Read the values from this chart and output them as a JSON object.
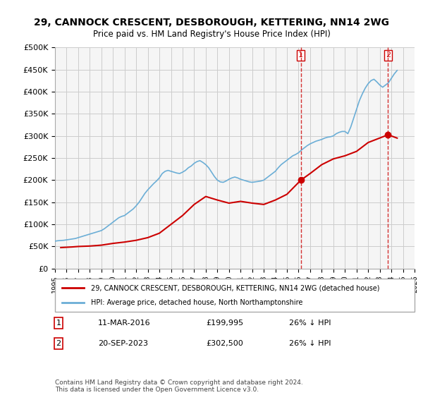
{
  "title": "29, CANNOCK CRESCENT, DESBOROUGH, KETTERING, NN14 2WG",
  "subtitle": "Price paid vs. HM Land Registry's House Price Index (HPI)",
  "ylabel_ticks": [
    0,
    50000,
    100000,
    150000,
    200000,
    250000,
    300000,
    350000,
    400000,
    450000,
    500000
  ],
  "ylabel_labels": [
    "£0",
    "£50K",
    "£100K",
    "£150K",
    "£200K",
    "£250K",
    "£300K",
    "£350K",
    "£400K",
    "£450K",
    "£500K"
  ],
  "xmin": 1995,
  "xmax": 2026,
  "ymin": 0,
  "ymax": 500000,
  "hpi_color": "#6baed6",
  "price_color": "#cc0000",
  "vline_color": "#cc0000",
  "grid_color": "#cccccc",
  "bg_color": "#f5f5f5",
  "legend_label_red": "29, CANNOCK CRESCENT, DESBOROUGH, KETTERING, NN14 2WG (detached house)",
  "legend_label_blue": "HPI: Average price, detached house, North Northamptonshire",
  "sale1_date": "11-MAR-2016",
  "sale1_price": "£199,995",
  "sale1_hpi": "26% ↓ HPI",
  "sale1_year": 2016.2,
  "sale2_date": "20-SEP-2023",
  "sale2_price": "£302,500",
  "sale2_hpi": "26% ↓ HPI",
  "sale2_year": 2023.72,
  "footer": "Contains HM Land Registry data © Crown copyright and database right 2024.\nThis data is licensed under the Open Government Licence v3.0.",
  "hpi_x": [
    1995.0,
    1995.25,
    1995.5,
    1995.75,
    1996.0,
    1996.25,
    1996.5,
    1996.75,
    1997.0,
    1997.25,
    1997.5,
    1997.75,
    1998.0,
    1998.25,
    1998.5,
    1998.75,
    1999.0,
    1999.25,
    1999.5,
    1999.75,
    2000.0,
    2000.25,
    2000.5,
    2000.75,
    2001.0,
    2001.25,
    2001.5,
    2001.75,
    2002.0,
    2002.25,
    2002.5,
    2002.75,
    2003.0,
    2003.25,
    2003.5,
    2003.75,
    2004.0,
    2004.25,
    2004.5,
    2004.75,
    2005.0,
    2005.25,
    2005.5,
    2005.75,
    2006.0,
    2006.25,
    2006.5,
    2006.75,
    2007.0,
    2007.25,
    2007.5,
    2007.75,
    2008.0,
    2008.25,
    2008.5,
    2008.75,
    2009.0,
    2009.25,
    2009.5,
    2009.75,
    2010.0,
    2010.25,
    2010.5,
    2010.75,
    2011.0,
    2011.25,
    2011.5,
    2011.75,
    2012.0,
    2012.25,
    2012.5,
    2012.75,
    2013.0,
    2013.25,
    2013.5,
    2013.75,
    2014.0,
    2014.25,
    2014.5,
    2014.75,
    2015.0,
    2015.25,
    2015.5,
    2015.75,
    2016.0,
    2016.25,
    2016.5,
    2016.75,
    2017.0,
    2017.25,
    2017.5,
    2017.75,
    2018.0,
    2018.25,
    2018.5,
    2018.75,
    2019.0,
    2019.25,
    2019.5,
    2019.75,
    2020.0,
    2020.25,
    2020.5,
    2020.75,
    2021.0,
    2021.25,
    2021.5,
    2021.75,
    2022.0,
    2022.25,
    2022.5,
    2022.75,
    2023.0,
    2023.25,
    2023.5,
    2023.75,
    2024.0,
    2024.25,
    2024.5
  ],
  "hpi_y": [
    62000,
    63000,
    63500,
    64000,
    65000,
    66000,
    67000,
    68000,
    70000,
    72000,
    74000,
    76000,
    78000,
    80000,
    82000,
    84000,
    86000,
    90000,
    95000,
    100000,
    105000,
    110000,
    115000,
    118000,
    120000,
    125000,
    130000,
    135000,
    142000,
    150000,
    160000,
    170000,
    178000,
    185000,
    192000,
    198000,
    205000,
    215000,
    220000,
    222000,
    220000,
    218000,
    216000,
    215000,
    218000,
    222000,
    228000,
    232000,
    238000,
    242000,
    244000,
    240000,
    235000,
    228000,
    218000,
    208000,
    200000,
    196000,
    195000,
    198000,
    202000,
    205000,
    207000,
    205000,
    202000,
    200000,
    198000,
    196000,
    195000,
    196000,
    197000,
    198000,
    200000,
    205000,
    210000,
    215000,
    220000,
    228000,
    235000,
    240000,
    245000,
    250000,
    255000,
    258000,
    262000,
    268000,
    273000,
    278000,
    282000,
    285000,
    288000,
    290000,
    292000,
    295000,
    297000,
    298000,
    300000,
    305000,
    308000,
    310000,
    310000,
    305000,
    320000,
    340000,
    360000,
    380000,
    395000,
    408000,
    418000,
    425000,
    428000,
    422000,
    415000,
    410000,
    415000,
    420000,
    430000,
    440000,
    448000
  ],
  "price_x": [
    1995.5,
    1996.5,
    1997.0,
    1998.0,
    1999.0,
    2000.0,
    2001.0,
    2002.0,
    2003.0,
    2004.0,
    2005.0,
    2006.0,
    2007.0,
    2008.0,
    2009.0,
    2010.0,
    2011.0,
    2012.0,
    2013.0,
    2014.0,
    2015.0,
    2016.2,
    2017.0,
    2018.0,
    2019.0,
    2020.0,
    2021.0,
    2022.0,
    2023.72,
    2024.5
  ],
  "price_y": [
    47500,
    49000,
    50000,
    51000,
    53000,
    57000,
    60000,
    64000,
    70000,
    80000,
    100000,
    120000,
    145000,
    163000,
    155000,
    148000,
    152000,
    148000,
    145000,
    155000,
    168000,
    199995,
    215000,
    235000,
    248000,
    255000,
    265000,
    285000,
    302500,
    295000
  ]
}
